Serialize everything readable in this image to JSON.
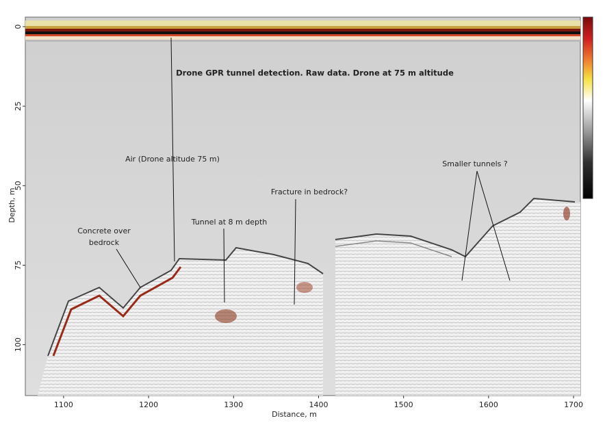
{
  "chart_data": {
    "type": "radargram",
    "title": "Drone GPR tunnel detection. Raw data. Drone at 75 m altitude",
    "x_label": "Distance, m",
    "y_label": "Depth, m",
    "xlim": [
      1055,
      1708
    ],
    "xticks": [
      1100,
      1200,
      1300,
      1400,
      1500,
      1600,
      1700
    ],
    "ylim": [
      -3,
      116
    ],
    "yticks": [
      0,
      25,
      50,
      75,
      100
    ],
    "annotations": [
      {
        "text": "Air (Drone altitude 75 m)"
      },
      {
        "text": [
          "Concrete over",
          "bedrock"
        ]
      },
      {
        "text": "Tunnel at 8 m depth"
      },
      {
        "text": "Fracture in bedrock?"
      },
      {
        "text": "Smaller tunnels ?"
      }
    ]
  }
}
